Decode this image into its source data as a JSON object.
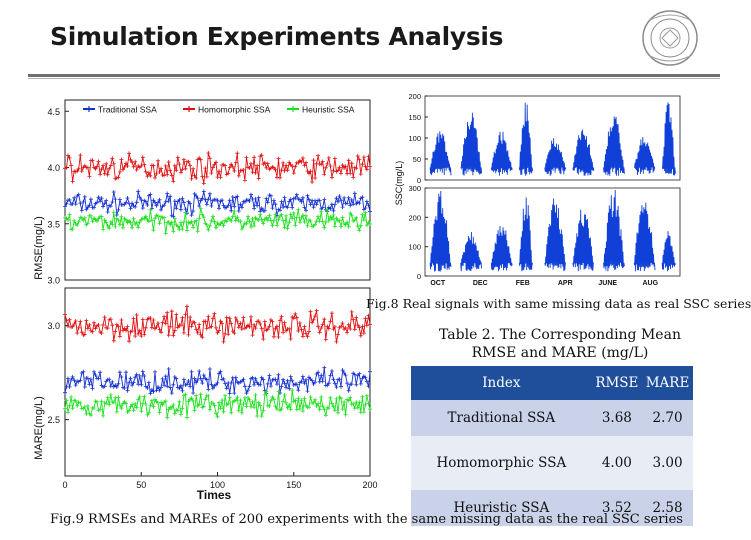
{
  "header": {
    "title": "Simulation Experiments Analysis"
  },
  "logo": {
    "name": "university-seal"
  },
  "colors": {
    "traditional": "#1530d0",
    "homomorphic": "#e01010",
    "heuristic": "#1ee01e",
    "ssc": "#1040d8",
    "table_header": "#1f4e9a"
  },
  "chart_data": [
    {
      "type": "line",
      "panel": "rmse",
      "xlabel": "",
      "ylabel": "RMSE(mg/L)",
      "ylim": [
        3.0,
        4.6
      ],
      "yticks": [
        "3.0",
        "3.5",
        "4.0",
        "4.5"
      ],
      "legend": [
        "Traditional SSA",
        "Homomorphic SSA",
        "Heuristic SSA"
      ],
      "legend_position": "top",
      "series": [
        {
          "name": "Traditional SSA",
          "mean": 3.68
        },
        {
          "name": "Homomorphic SSA",
          "mean": 4.0
        },
        {
          "name": "Heuristic SSA",
          "mean": 3.52
        }
      ]
    },
    {
      "type": "line",
      "panel": "mare",
      "xlabel": "Times",
      "ylabel": "MARE(mg/L)",
      "xlim": [
        0,
        200
      ],
      "xticks": [
        "0",
        "50",
        "100",
        "150",
        "200"
      ],
      "ylim": [
        2.2,
        3.2
      ],
      "yticks": [
        "2.5",
        "3.0"
      ],
      "series": [
        {
          "name": "Traditional SSA",
          "mean": 2.7
        },
        {
          "name": "Homomorphic SSA",
          "mean": 3.0
        },
        {
          "name": "Heuristic SSA",
          "mean": 2.58
        }
      ]
    },
    {
      "type": "line",
      "panel": "ssc-top",
      "ylabel": "SSC(mg/L)",
      "ylim": [
        0,
        200
      ],
      "yticks": [
        "0",
        "50",
        "100",
        "150",
        "200"
      ]
    },
    {
      "type": "line",
      "panel": "ssc-bottom",
      "ylim": [
        0,
        300
      ],
      "yticks": [
        "0",
        "100",
        "200",
        "300"
      ],
      "xticks": [
        "OCT",
        "DEC",
        "FEB",
        "APR",
        "JUNE",
        "AUG"
      ]
    }
  ],
  "fig8_caption": "Fig.8 Real signals with same missing data as real SSC series",
  "table": {
    "title_line1": "Table 2. The Corresponding Mean",
    "title_line2": "RMSE and MARE (mg/L)",
    "headers": [
      "Index",
      "RMSE",
      "MARE"
    ],
    "rows": [
      [
        "Traditional SSA",
        "3.68",
        "2.70"
      ],
      [
        "Homomorphic SSA",
        "4.00",
        "3.00"
      ],
      [
        "Heuristic SSA",
        "3.52",
        "2.58"
      ]
    ]
  },
  "fig9_caption": "Fig.9 RMSEs and MAREs of 200 experiments with the same missing data as the real SSC series"
}
